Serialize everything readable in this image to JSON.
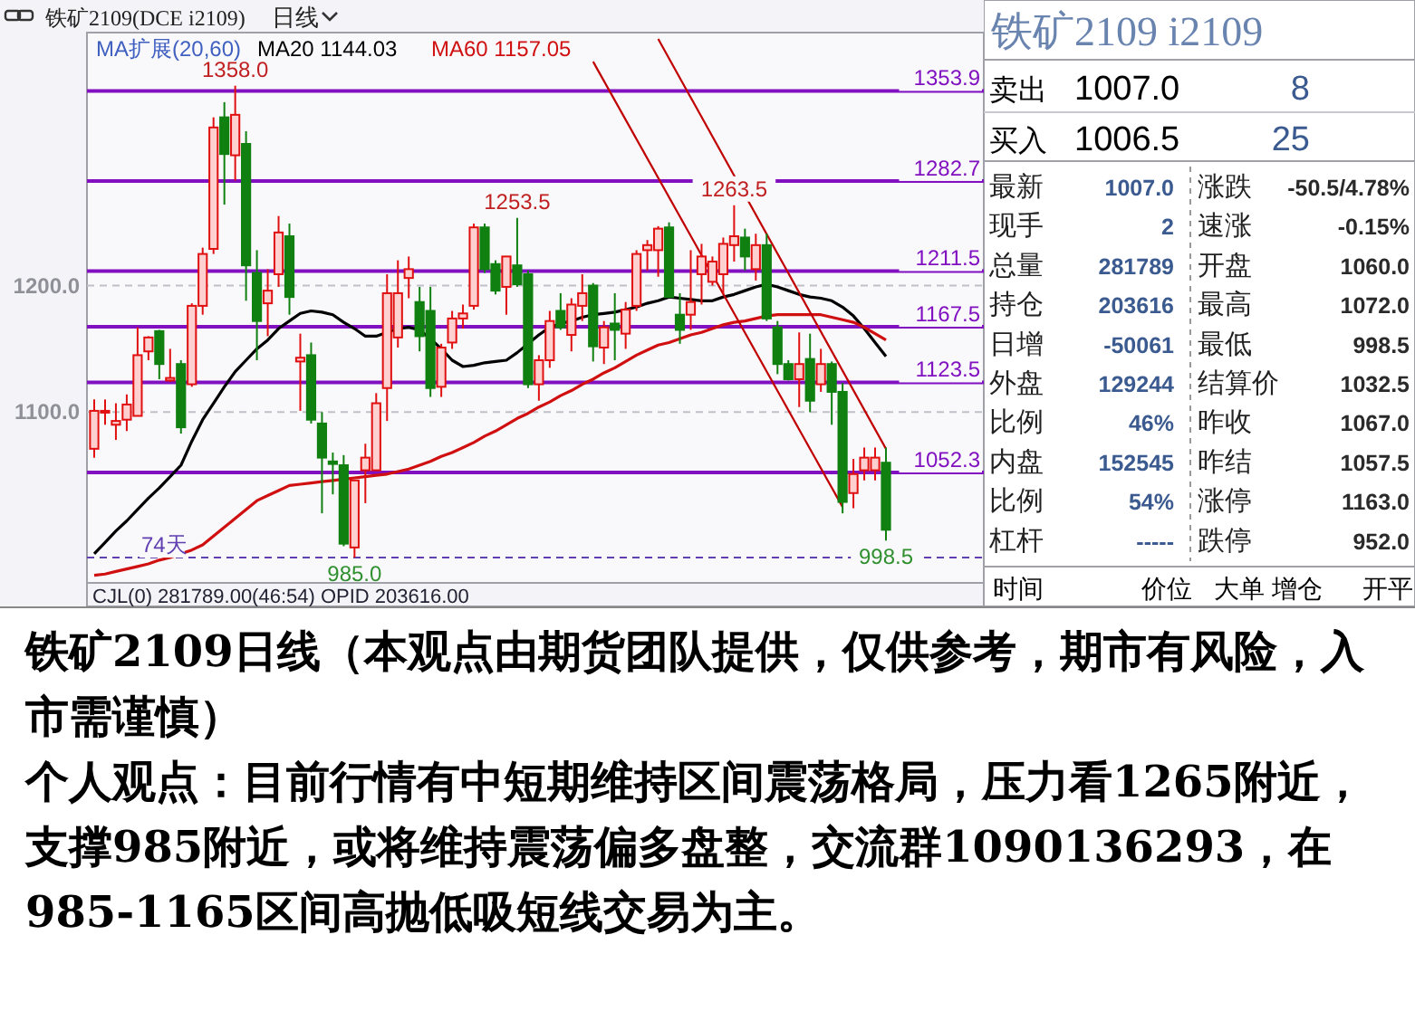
{
  "chart_data": [
    {
      "type": "candlestick",
      "title": "铁矿2109(DCE i2109)",
      "subtitle": "日线",
      "legend_title": "MA扩展(20,60)",
      "legend": "top",
      "grid": "y",
      "tick_labels": "y",
      "categories": [
        null,
        null,
        null,
        null,
        null,
        null,
        null,
        null,
        null,
        null,
        null,
        null,
        null,
        null,
        null,
        null,
        null,
        null,
        null,
        null,
        null,
        null,
        null,
        null,
        null,
        null,
        null,
        null,
        null,
        null,
        null,
        null,
        null,
        null,
        null,
        null,
        null,
        null,
        null,
        null,
        null,
        null,
        null,
        null,
        null,
        null,
        null,
        null,
        null,
        null,
        null,
        null,
        null,
        null,
        null,
        null,
        null,
        null,
        null,
        null,
        null,
        null,
        null,
        null,
        null,
        null,
        null,
        null,
        null,
        null,
        null,
        null,
        null,
        null
      ],
      "ohlc": [
        [
          1071,
          1110,
          1064,
          1101
        ],
        [
          1100,
          1110,
          1090,
          1101
        ],
        [
          1090,
          1107,
          1078,
          1093
        ],
        [
          1094,
          1114,
          1085,
          1106
        ],
        [
          1097,
          1167,
          1097,
          1145
        ],
        [
          1148,
          1160,
          1141,
          1159
        ],
        [
          1164,
          1165,
          1126,
          1138
        ],
        [
          1125,
          1150,
          1124,
          1127
        ],
        [
          1138,
          1141,
          1083,
          1088
        ],
        [
          1122,
          1186,
          1120,
          1184
        ],
        [
          1184,
          1230,
          1177,
          1225
        ],
        [
          1229,
          1333,
          1225,
          1325
        ],
        [
          1333,
          1345,
          1264,
          1304
        ],
        [
          1303,
          1358,
          1283,
          1335
        ],
        [
          1312,
          1322,
          1188,
          1216
        ],
        [
          1210,
          1228,
          1141,
          1172
        ],
        [
          1186,
          1213,
          1160,
          1196
        ],
        [
          1209,
          1255,
          1199,
          1242
        ],
        [
          1239,
          1249,
          1177,
          1191
        ],
        [
          1140,
          1162,
          1101,
          1143
        ],
        [
          1145,
          1155,
          1091,
          1094
        ],
        [
          1091,
          1100,
          1020,
          1064
        ],
        [
          1061,
          1068,
          1035,
          1059
        ],
        [
          1058,
          1066,
          994,
          996
        ],
        [
          993,
          1046,
          985,
          1046
        ],
        [
          1054,
          1075,
          1028,
          1064
        ],
        [
          1054,
          1115,
          1054,
          1107
        ],
        [
          1119,
          1209,
          1093,
          1194
        ],
        [
          1159,
          1220,
          1151,
          1194
        ],
        [
          1206,
          1223,
          1190,
          1213
        ],
        [
          1187,
          1199,
          1148,
          1160
        ],
        [
          1180,
          1199,
          1112,
          1119
        ],
        [
          1120,
          1154,
          1112,
          1151
        ],
        [
          1155,
          1180,
          1150,
          1174
        ],
        [
          1174,
          1185,
          1166,
          1178
        ],
        [
          1184,
          1249,
          1181,
          1246
        ],
        [
          1246,
          1249,
          1210,
          1213
        ],
        [
          1217,
          1220,
          1193,
          1196
        ],
        [
          1199,
          1223,
          1177,
          1223
        ],
        [
          1216,
          1253.5,
          1199,
          1201
        ],
        [
          1209,
          1212,
          1119,
          1122
        ],
        [
          1122,
          1145,
          1109,
          1141
        ],
        [
          1141,
          1180,
          1135,
          1172
        ],
        [
          1180,
          1194,
          1165,
          1167
        ],
        [
          1161,
          1190,
          1148,
          1185
        ],
        [
          1184,
          1209,
          1172,
          1194
        ],
        [
          1200,
          1202,
          1140,
          1152
        ],
        [
          1151,
          1172,
          1138,
          1167
        ],
        [
          1170,
          1194,
          1141,
          1165
        ],
        [
          1162,
          1187,
          1150,
          1181
        ],
        [
          1184,
          1228,
          1180,
          1225
        ],
        [
          1228,
          1236,
          1212,
          1232
        ],
        [
          1228,
          1247,
          1207,
          1245
        ],
        [
          1246,
          1250,
          1191,
          1191
        ],
        [
          1177,
          1194,
          1154,
          1165
        ],
        [
          1177,
          1228,
          1165,
          1187
        ],
        [
          1209,
          1233,
          1185,
          1223
        ],
        [
          1203,
          1223,
          1200,
          1219
        ],
        [
          1209,
          1238,
          1193,
          1233
        ],
        [
          1232,
          1263.5,
          1219,
          1239
        ],
        [
          1238,
          1245,
          1212,
          1223
        ],
        [
          1213,
          1241,
          1204,
          1232
        ],
        [
          1232,
          1241,
          1172,
          1174
        ],
        [
          1167,
          1172,
          1130,
          1138
        ],
        [
          1138,
          1141,
          1125,
          1126
        ],
        [
          1126,
          1163,
          1104,
          1138
        ],
        [
          1142,
          1162,
          1100,
          1109
        ],
        [
          1122,
          1150,
          1116,
          1138
        ],
        [
          1138,
          1140,
          1090,
          1116
        ],
        [
          1116,
          1123,
          1020,
          1029
        ],
        [
          1036,
          1063,
          1024,
          1051
        ],
        [
          1054,
          1072,
          1046,
          1064
        ],
        [
          1054,
          1072,
          1046,
          1064
        ],
        [
          1060,
          1072,
          998.5,
          1007
        ]
      ],
      "series": [
        {
          "type": "line",
          "name": "MA20 1144.03",
          "color": "#000000",
          "values": [
            988,
            997,
            1006,
            1014,
            1023,
            1032,
            1040,
            1049,
            1058,
            1077,
            1094,
            1107,
            1120,
            1132,
            1141,
            1150,
            1157,
            1166,
            1172,
            1178,
            1180,
            1179,
            1177,
            1171,
            1166,
            1160,
            1160,
            1163,
            1166,
            1167,
            1165,
            1158,
            1150,
            1141,
            1136,
            1137,
            1139,
            1140,
            1141,
            1147,
            1154,
            1161,
            1167,
            1170,
            1172,
            1175,
            1177,
            1178,
            1179,
            1181,
            1183,
            1186,
            1188,
            1191,
            1190,
            1189,
            1188,
            1188,
            1191,
            1193,
            1196,
            1199,
            1201,
            1199,
            1196,
            1193,
            1191,
            1190,
            1188,
            1183,
            1176,
            1166,
            1155,
            1144
          ]
        },
        {
          "type": "line",
          "name": "MA60 1157.05",
          "color": "#d01010",
          "values": [
            971,
            972,
            974,
            976,
            978,
            980,
            983,
            985,
            988,
            991,
            995,
            1002,
            1009,
            1016,
            1023,
            1030,
            1034,
            1038,
            1042,
            1043,
            1044,
            1045,
            1046,
            1047,
            1048,
            1049,
            1050,
            1051,
            1053,
            1055,
            1058,
            1061,
            1065,
            1068,
            1072,
            1076,
            1081,
            1085,
            1090,
            1095,
            1099,
            1104,
            1108,
            1113,
            1117,
            1122,
            1126,
            1131,
            1135,
            1140,
            1145,
            1149,
            1153,
            1155,
            1158,
            1161,
            1163,
            1166,
            1169,
            1171,
            1172,
            1174,
            1176,
            1177,
            1177,
            1177,
            1177,
            1177,
            1175,
            1173,
            1171,
            1167,
            1162,
            1157
          ]
        },
        {
          "type": "line",
          "color": "#c00000",
          "values": [
            null,
            null,
            null,
            null,
            null,
            null,
            null,
            null,
            null,
            null,
            null,
            null,
            null,
            null,
            null,
            null,
            null,
            null,
            null,
            null,
            null,
            null,
            null,
            null,
            null,
            null,
            null,
            null,
            null,
            null,
            null,
            null,
            null,
            null,
            null,
            null,
            null,
            null,
            null,
            null,
            null,
            null,
            null,
            null,
            null,
            null,
            null,
            null,
            null,
            null,
            null,
            null,
            1395,
            null,
            null,
            null,
            null,
            null,
            null,
            null,
            null,
            null,
            null,
            null,
            null,
            null,
            null,
            null,
            null,
            null,
            null,
            null,
            null,
            1071
          ]
        },
        {
          "type": "line",
          "color": "#c00000",
          "values": [
            null,
            null,
            null,
            null,
            null,
            null,
            null,
            null,
            null,
            null,
            null,
            null,
            null,
            null,
            null,
            null,
            null,
            null,
            null,
            null,
            null,
            null,
            null,
            null,
            null,
            null,
            null,
            null,
            null,
            null,
            null,
            null,
            null,
            null,
            null,
            null,
            null,
            null,
            null,
            null,
            null,
            null,
            null,
            null,
            null,
            null,
            1377,
            null,
            null,
            null,
            null,
            null,
            null,
            null,
            null,
            null,
            null,
            null,
            null,
            null,
            null,
            null,
            null,
            null,
            null,
            null,
            null,
            null,
            null,
            1025,
            null,
            null,
            null,
            null
          ]
        }
      ],
      "ylim": [
        965,
        1400
      ],
      "yticks": [
        {
          "value": 1100,
          "label": "1100.0"
        },
        {
          "value": 1200,
          "label": "1200.0"
        }
      ],
      "ref_lines": [
        {
          "axis": "y",
          "value": 1353.9,
          "label": "1353.9",
          "color": "#8010c0"
        },
        {
          "axis": "y",
          "value": 1282.7,
          "label": "1282.7",
          "color": "#8010c0"
        },
        {
          "axis": "y",
          "value": 1211.5,
          "label": "1211.5",
          "color": "#8010c0"
        },
        {
          "axis": "y",
          "value": 1167.5,
          "label": "1167.5",
          "color": "#8010c0"
        },
        {
          "axis": "y",
          "value": 1123.5,
          "label": "1123.5",
          "color": "#8010c0"
        },
        {
          "axis": "y",
          "value": 1052.3,
          "label": "1052.3",
          "color": "#8010c0"
        },
        {
          "axis": "y",
          "value": 985,
          "label": "74天",
          "color": "#6040b0",
          "line_style": "dashed"
        }
      ],
      "annotations": [
        "CJL(0)   281789.00(46:54)   OPID 203616.00",
        {
          "text": "1358.0",
          "y": 1358
        },
        {
          "text": "1253.5",
          "y": 1253.5
        },
        {
          "text": "1263.5",
          "y": 1263.5
        },
        {
          "text": "985.0",
          "y": 985
        },
        {
          "text": "998.5",
          "y": 998.5
        },
        "铁矿2109日线（本观点由期货团队提供，仅供参考，期市有风险，入市需谨慎）",
        "个人观点：目前行情有中短期维持区间震荡格局，压力看1265附近，支撑985附近，或将维持震荡偏多盘整，交流群1090136293，在985-1165区间高抛低吸短线交易为主。"
      ]
    },
    {
      "type": "other",
      "title": "铁矿2109  i2109",
      "annotations": [
        "卖出",
        "1007.0",
        "8",
        "买入",
        "1006.5",
        "25",
        "最新",
        "1007.0",
        "涨跌",
        "-50.5/4.78%",
        "现手",
        "2",
        "速涨",
        "-0.15%",
        "总量",
        "281789",
        "开盘",
        "1060.0",
        "持仓",
        "203616",
        "最高",
        "1072.0",
        "日增",
        "-50061",
        "最低",
        "998.5",
        "外盘",
        "129244",
        "结算价",
        "1032.5",
        "比例",
        "46%",
        "昨收",
        "1067.0",
        "内盘",
        "152545",
        "昨结",
        "1057.5",
        "比例",
        "54%",
        "涨停",
        "1163.0",
        "杠杆",
        "-----",
        "跌停",
        "952.0",
        "时间",
        "价位",
        "大单",
        "增仓",
        "开平"
      ]
    }
  ]
}
